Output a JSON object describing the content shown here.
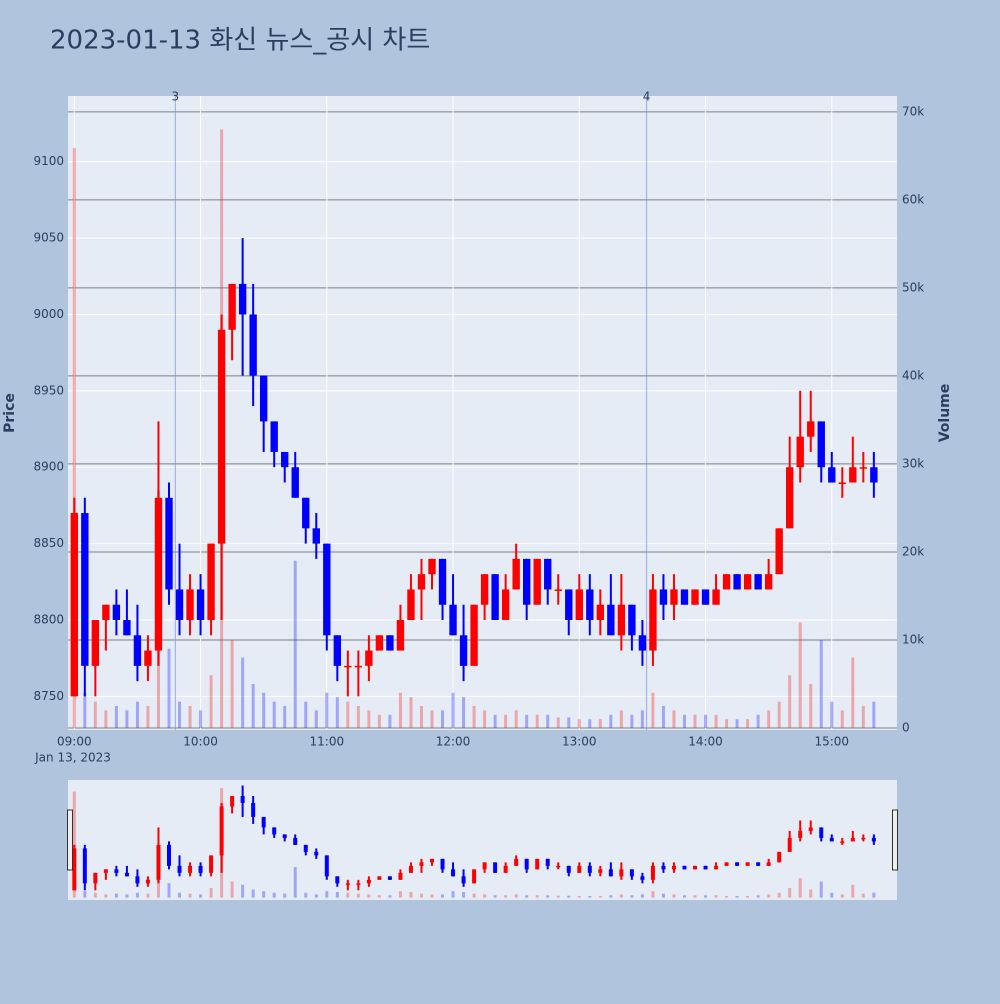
{
  "chart_data": {
    "type": "candlestick",
    "title": "2023-01-13 화신 뉴스_공시 차트",
    "y_label": "Price",
    "y2_label": "Volume",
    "x_date_label": "Jan 13, 2023",
    "increasing_color": "#ff0000",
    "decreasing_color": "#0000ff",
    "title_color": "#e8485a",
    "x": [
      "2023-01-13 09:00",
      "2023-01-13 09:05",
      "2023-01-13 09:10",
      "2023-01-13 09:15",
      "2023-01-13 09:20",
      "2023-01-13 09:25",
      "2023-01-13 09:30",
      "2023-01-13 09:35",
      "2023-01-13 09:40",
      "2023-01-13 09:45",
      "2023-01-13 09:50",
      "2023-01-13 09:55",
      "2023-01-13 10:00",
      "2023-01-13 10:05",
      "2023-01-13 10:10",
      "2023-01-13 10:15",
      "2023-01-13 10:20",
      "2023-01-13 10:25",
      "2023-01-13 10:30",
      "2023-01-13 10:35",
      "2023-01-13 10:40",
      "2023-01-13 10:45",
      "2023-01-13 10:50",
      "2023-01-13 10:55",
      "2023-01-13 11:00",
      "2023-01-13 11:05",
      "2023-01-13 11:10",
      "2023-01-13 11:15",
      "2023-01-13 11:20",
      "2023-01-13 11:25",
      "2023-01-13 11:30",
      "2023-01-13 11:35",
      "2023-01-13 11:40",
      "2023-01-13 11:45",
      "2023-01-13 11:50",
      "2023-01-13 11:55",
      "2023-01-13 12:00",
      "2023-01-13 12:05",
      "2023-01-13 12:10",
      "2023-01-13 12:15",
      "2023-01-13 12:20",
      "2023-01-13 12:25",
      "2023-01-13 12:30",
      "2023-01-13 12:35",
      "2023-01-13 12:40",
      "2023-01-13 12:45",
      "2023-01-13 12:50",
      "2023-01-13 12:55",
      "2023-01-13 13:00",
      "2023-01-13 13:05",
      "2023-01-13 13:10",
      "2023-01-13 13:15",
      "2023-01-13 13:20",
      "2023-01-13 13:25",
      "2023-01-13 13:30",
      "2023-01-13 13:35",
      "2023-01-13 13:40",
      "2023-01-13 13:45",
      "2023-01-13 13:50",
      "2023-01-13 13:55",
      "2023-01-13 14:00",
      "2023-01-13 14:05",
      "2023-01-13 14:10",
      "2023-01-13 14:15",
      "2023-01-13 14:20",
      "2023-01-13 14:25",
      "2023-01-13 14:30",
      "2023-01-13 14:35",
      "2023-01-13 14:40",
      "2023-01-13 14:45",
      "2023-01-13 14:50",
      "2023-01-13 14:55",
      "2023-01-13 15:00",
      "2023-01-13 15:05",
      "2023-01-13 15:10",
      "2023-01-13 15:15",
      "2023-01-13 15:20"
    ],
    "open": [
      8750,
      8870,
      8770,
      8800,
      8810,
      8800,
      8790,
      8770,
      8780,
      8880,
      8820,
      8800,
      8820,
      8800,
      8850,
      8990,
      9020,
      9000,
      8960,
      8930,
      8910,
      8900,
      8880,
      8860,
      8850,
      8790,
      8770,
      8770,
      8770,
      8780,
      8790,
      8780,
      8800,
      8820,
      8830,
      8840,
      8810,
      8790,
      8770,
      8810,
      8830,
      8800,
      8820,
      8840,
      8810,
      8840,
      8820,
      8820,
      8800,
      8820,
      8800,
      8810,
      8790,
      8810,
      8790,
      8780,
      8820,
      8810,
      8820,
      8810,
      8820,
      8810,
      8820,
      8830,
      8820,
      8830,
      8820,
      8830,
      8860,
      8900,
      8920,
      8930,
      8900,
      8890,
      8890,
      8900,
      8900
    ],
    "high": [
      8880,
      8880,
      8800,
      8810,
      8820,
      8820,
      8810,
      8790,
      8930,
      8890,
      8850,
      8830,
      8830,
      8850,
      9000,
      9020,
      9050,
      9020,
      8960,
      8930,
      8910,
      8910,
      8880,
      8870,
      8850,
      8790,
      8780,
      8780,
      8790,
      8790,
      8790,
      8810,
      8830,
      8840,
      8840,
      8840,
      8830,
      8810,
      8810,
      8830,
      8830,
      8830,
      8850,
      8840,
      8840,
      8840,
      8830,
      8820,
      8830,
      8830,
      8820,
      8830,
      8830,
      8810,
      8800,
      8830,
      8830,
      8830,
      8820,
      8820,
      8820,
      8830,
      8830,
      8830,
      8830,
      8830,
      8840,
      8860,
      8920,
      8950,
      8950,
      8930,
      8910,
      8900,
      8920,
      8910,
      8910
    ],
    "low": [
      8750,
      8750,
      8750,
      8780,
      8790,
      8790,
      8760,
      8760,
      8770,
      8810,
      8790,
      8790,
      8790,
      8790,
      8800,
      8970,
      8960,
      8940,
      8910,
      8900,
      8890,
      8880,
      8850,
      8840,
      8780,
      8760,
      8750,
      8750,
      8760,
      8780,
      8780,
      8780,
      8800,
      8800,
      8820,
      8800,
      8790,
      8760,
      8770,
      8800,
      8800,
      8800,
      8820,
      8800,
      8810,
      8810,
      8810,
      8790,
      8800,
      8790,
      8790,
      8790,
      8780,
      8780,
      8770,
      8770,
      8800,
      8800,
      8810,
      8810,
      8810,
      8810,
      8820,
      8820,
      8820,
      8820,
      8820,
      8830,
      8860,
      8890,
      8910,
      8890,
      8890,
      8880,
      8890,
      8890,
      8880
    ],
    "close": [
      8870,
      8770,
      8800,
      8810,
      8800,
      8790,
      8770,
      8780,
      8880,
      8820,
      8800,
      8820,
      8800,
      8850,
      8990,
      9020,
      9000,
      8960,
      8930,
      8910,
      8900,
      8880,
      8860,
      8850,
      8790,
      8770,
      8770,
      8770,
      8780,
      8790,
      8780,
      8800,
      8820,
      8830,
      8840,
      8810,
      8790,
      8770,
      8810,
      8830,
      8800,
      8820,
      8840,
      8810,
      8840,
      8820,
      8820,
      8800,
      8820,
      8800,
      8810,
      8790,
      8810,
      8790,
      8780,
      8820,
      8810,
      8820,
      8810,
      8820,
      8810,
      8820,
      8830,
      8820,
      8830,
      8820,
      8830,
      8860,
      8900,
      8920,
      8930,
      8900,
      8890,
      8890,
      8900,
      8900,
      8890
    ],
    "volume": [
      65900,
      4000,
      3000,
      2000,
      2500,
      2000,
      3000,
      2500,
      27000,
      9000,
      3000,
      2500,
      2000,
      6000,
      68000,
      10000,
      8000,
      5000,
      4000,
      3000,
      2500,
      19000,
      3000,
      2000,
      4000,
      3500,
      3000,
      2500,
      2000,
      1500,
      1500,
      4000,
      3500,
      2500,
      2000,
      2000,
      4000,
      3500,
      2500,
      2000,
      1500,
      1500,
      2000,
      1500,
      1500,
      1500,
      1200,
      1200,
      1000,
      1000,
      1000,
      1500,
      2000,
      1500,
      2000,
      4000,
      2500,
      2000,
      1500,
      1500,
      1500,
      1500,
      1000,
      1000,
      1000,
      1500,
      2000,
      3000,
      6000,
      12000,
      5000,
      10000,
      3000,
      2000,
      8000,
      2500,
      3000
    ],
    "vlines": [
      {
        "x": "2023-01-13 09:48",
        "label": "3"
      },
      {
        "x": "2023-01-13 13:32",
        "label": "4"
      }
    ],
    "xlim": [
      "2023-01-13 08:57",
      "2023-01-13 15:31"
    ],
    "xticks": [
      {
        "value": "2023-01-13 09:00",
        "label": "09:00"
      },
      {
        "value": "2023-01-13 10:00",
        "label": "10:00"
      },
      {
        "value": "2023-01-13 11:00",
        "label": "11:00"
      },
      {
        "value": "2023-01-13 12:00",
        "label": "12:00"
      },
      {
        "value": "2023-01-13 13:00",
        "label": "13:00"
      },
      {
        "value": "2023-01-13 14:00",
        "label": "14:00"
      },
      {
        "value": "2023-01-13 15:00",
        "label": "15:00"
      }
    ],
    "ylim": [
      8728,
      9143
    ],
    "yticks": [
      8750,
      8800,
      8850,
      8900,
      8950,
      9000,
      9050,
      9100
    ],
    "y2lim": [
      -230,
      71800
    ],
    "y2ticks": [
      0,
      {
        "value": 10000,
        "label": "10k"
      },
      {
        "value": 20000,
        "label": "20k"
      },
      {
        "value": 30000,
        "label": "30k"
      },
      {
        "value": 40000,
        "label": "40k"
      },
      {
        "value": 50000,
        "label": "50k"
      },
      {
        "value": 60000,
        "label": "60k"
      },
      {
        "value": 70000,
        "label": "70k"
      }
    ],
    "grid": true
  }
}
